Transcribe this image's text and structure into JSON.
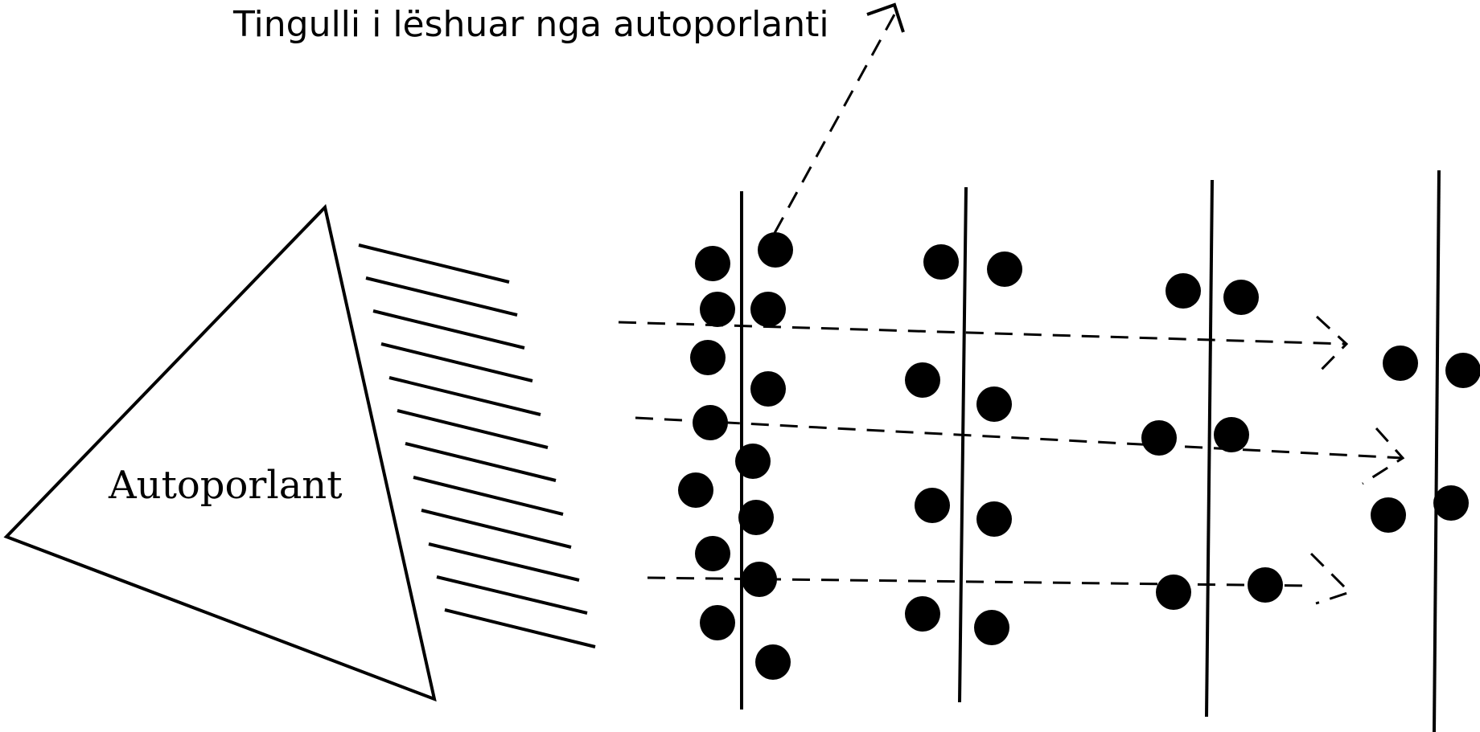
{
  "caption": "Tingulli i lëshuar nga autoporlanti",
  "speaker": {
    "label": "Autoporlant"
  },
  "colors": {
    "stroke": "#000000",
    "particle": "#000000",
    "background": "#ffffff"
  }
}
